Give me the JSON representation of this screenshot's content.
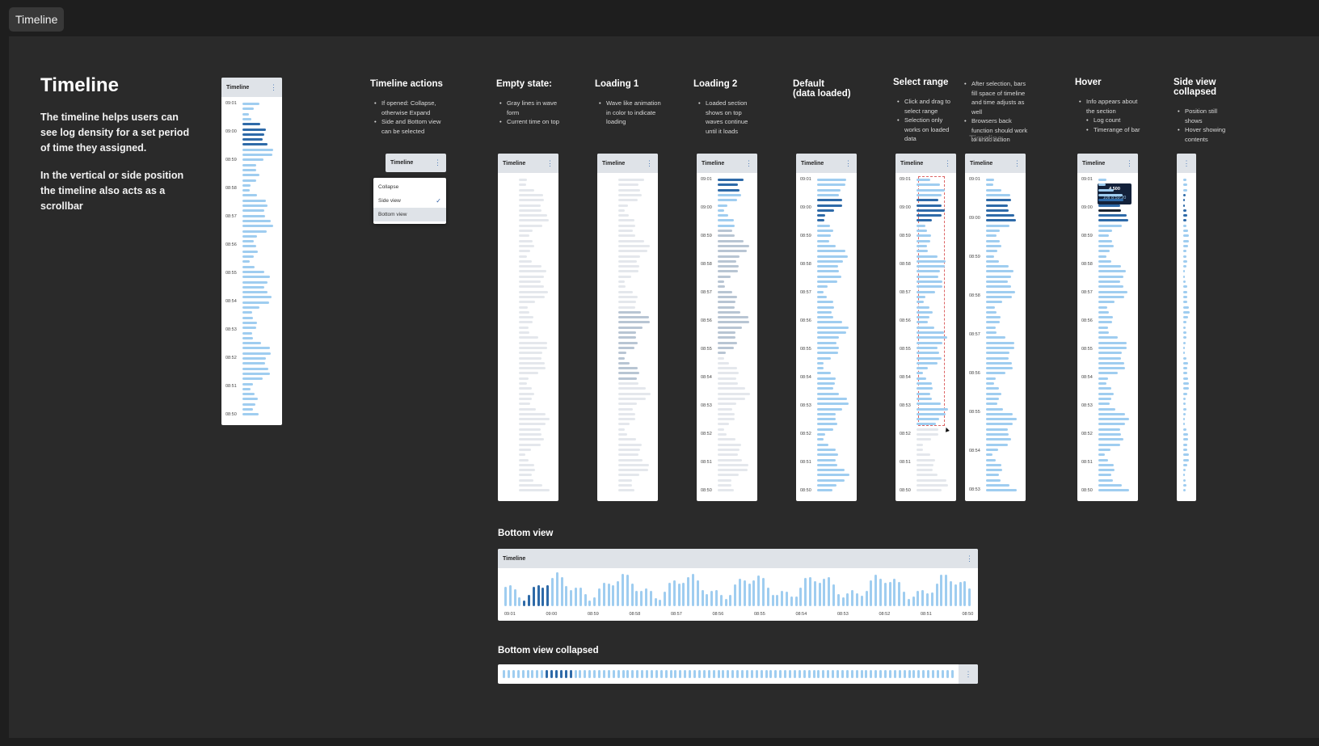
{
  "app": {
    "tab_label": "Timeline"
  },
  "intro": {
    "title": "Timeline",
    "para1": "The timeline helps users can see log density for a set period of time they assigned.",
    "para2": "In the vertical or side position the timeline also acts as a scrollbar"
  },
  "panel_title": "Timeline",
  "menu_glyph": "⋮",
  "check_glyph": "✓",
  "cursor_glyph": "▲",
  "side_ticks": [
    "09:01",
    "09:00",
    "08:59",
    "08:58",
    "08:57",
    "08:56",
    "08:55",
    "08:54",
    "08:53",
    "08:52",
    "08:51",
    "08:50"
  ],
  "sections": {
    "actions": {
      "heading": "Timeline actions",
      "notes": [
        "If opened: Collapse, otherwise Expand",
        "Side and Bottom view can be selected"
      ]
    },
    "empty": {
      "heading": "Empty state:",
      "notes": [
        "Gray lines in wave form",
        "Current time on top"
      ]
    },
    "loading1": {
      "heading": "Loading 1",
      "notes": [
        "Wave like animation in color to indicate loading"
      ]
    },
    "loading2": {
      "heading": "Loading 2",
      "notes": [
        "Loaded section shows on top waves continue until it loads"
      ]
    },
    "default": {
      "heading_line1": "Default",
      "heading_line2": "(data loaded)"
    },
    "select": {
      "heading": "Select range",
      "notes": [
        "Click and drag to select range",
        "Selection only works on loaded data"
      ]
    },
    "after": {
      "notes": [
        "After selection, bars fill space of timeline and time adjusts as well",
        "Browsers back function should work to undo action"
      ],
      "overlay": "Timeline"
    },
    "hover": {
      "heading": "Hover",
      "notes": [
        "Info appears about the section"
      ],
      "subnotes": [
        "Log count",
        "Timerange of bar"
      ],
      "tooltip_count": "4 500",
      "tooltip_range": "10s 8:59:20"
    },
    "collapsed": {
      "heading_line1": "Side view",
      "heading_line2": "collapsed",
      "notes": [
        "Position still shows",
        "Hover showing contents"
      ]
    },
    "bottom": {
      "heading": "Bottom view",
      "ticks": [
        "09:01",
        "09:00",
        "08:59",
        "08:58",
        "08:57",
        "08:56",
        "08:55",
        "08:54",
        "08:53",
        "08:52",
        "08:51",
        "08:50"
      ]
    },
    "bottom_collapsed": {
      "heading": "Bottom view collapsed"
    }
  },
  "menu": {
    "items": [
      {
        "label": "Collapse"
      },
      {
        "label": "Side view"
      },
      {
        "label": "Bottom view"
      }
    ]
  },
  "colors": {
    "bar_light": "#9fcdf0",
    "bar_dark": "#2e6aa8",
    "bar_gray": "#e4e7ec",
    "bar_mid": "#b8c5d3",
    "bar_black": "#1d2633",
    "header": "#dfe3e8"
  }
}
